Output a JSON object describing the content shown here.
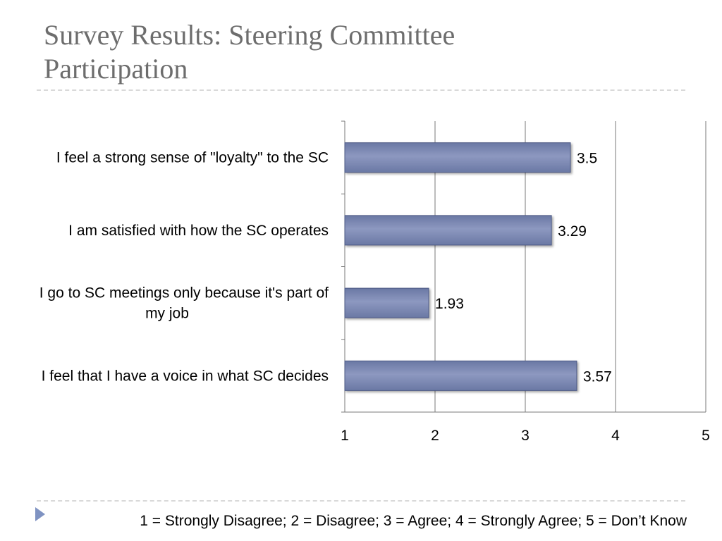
{
  "slide": {
    "title_line1": "Survey Results: Steering Committee",
    "title_line2": "Participation",
    "legend": "1 = Strongly Disagree; 2 = Disagree; 3 = Agree; 4 = Strongly Agree; 5 = Don’t Know"
  },
  "colors": {
    "bar_fill": "#6a78a4",
    "bar_highlight": "#8d98c0",
    "gridline": "#7a7a7a",
    "title": "#6d6d6d",
    "bullet": "#7f93c2"
  },
  "chart_data": {
    "type": "bar",
    "orientation": "horizontal",
    "categories": [
      [
        "I feel a strong sense of \"loyalty\" to the SC"
      ],
      [
        "I am satisfied with how the SC operates"
      ],
      [
        "I go to SC meetings only because it's part of",
        "my job"
      ],
      [
        "I feel that I have a voice in what SC decides"
      ]
    ],
    "values": [
      3.5,
      3.29,
      1.93,
      3.57
    ],
    "value_labels": [
      "3.5",
      "3.29",
      "1.93",
      "3.57"
    ],
    "xlim": [
      1,
      5
    ],
    "xticks": [
      "1",
      "2",
      "3",
      "4",
      "5"
    ],
    "grid": true,
    "legend": false,
    "title": "",
    "xlabel": "",
    "ylabel": ""
  }
}
